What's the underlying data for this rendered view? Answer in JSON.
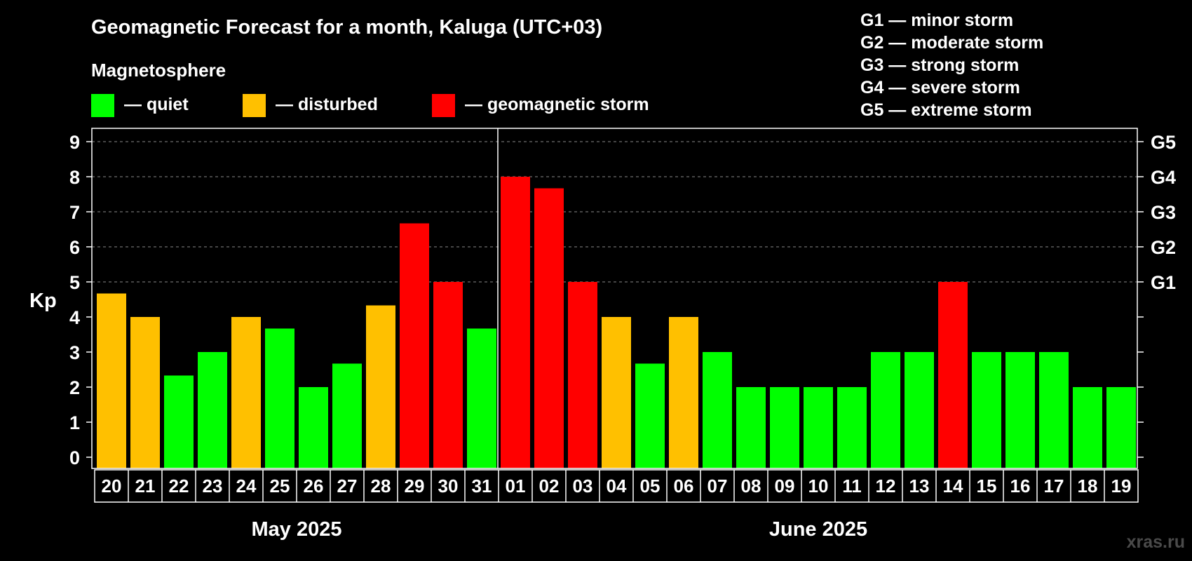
{
  "chart_data": {
    "type": "bar",
    "title": "Geomagnetic Forecast for a month, Kaluga (UTC+03)",
    "subtitle": "Magnetosphere",
    "ylabel": "Kp",
    "ylim": [
      0,
      9
    ],
    "yticks": [
      "0",
      "1",
      "2",
      "3",
      "4",
      "5",
      "6",
      "7",
      "8",
      "9"
    ],
    "right_ticks": [
      {
        "value": 5,
        "label": "G1"
      },
      {
        "value": 6,
        "label": "G2"
      },
      {
        "value": 7,
        "label": "G3"
      },
      {
        "value": 8,
        "label": "G4"
      },
      {
        "value": 9,
        "label": "G5"
      }
    ],
    "legend": [
      {
        "label": "— quiet",
        "color": "#00ff00"
      },
      {
        "label": "— disturbed",
        "color": "#ffc000"
      },
      {
        "label": "— geomagnetic storm",
        "color": "#ff0000"
      }
    ],
    "g_legend": [
      "G1 — minor storm",
      "G2 — moderate storm",
      "G3 — strong storm",
      "G4 — severe storm",
      "G5 — extreme storm"
    ],
    "months": [
      {
        "label": "May 2025",
        "start": 0,
        "count": 12
      },
      {
        "label": "June 2025",
        "start": 12,
        "count": 19
      }
    ],
    "categories": [
      "20",
      "21",
      "22",
      "23",
      "24",
      "25",
      "26",
      "27",
      "28",
      "29",
      "30",
      "31",
      "01",
      "02",
      "03",
      "04",
      "05",
      "06",
      "07",
      "08",
      "09",
      "10",
      "11",
      "12",
      "13",
      "14",
      "15",
      "16",
      "17",
      "18",
      "19"
    ],
    "values": [
      4.67,
      4,
      2.33,
      3,
      4,
      3.67,
      2,
      2.67,
      4.33,
      6.67,
      5,
      3.67,
      8,
      7.67,
      5,
      4,
      2.67,
      4,
      3,
      2,
      2,
      2,
      2,
      3,
      3,
      5,
      3,
      3,
      3,
      2,
      2
    ],
    "colors": [
      "#ffc000",
      "#ffc000",
      "#00ff00",
      "#00ff00",
      "#ffc000",
      "#00ff00",
      "#00ff00",
      "#00ff00",
      "#ffc000",
      "#ff0000",
      "#ff0000",
      "#00ff00",
      "#ff0000",
      "#ff0000",
      "#ff0000",
      "#ffc000",
      "#00ff00",
      "#ffc000",
      "#00ff00",
      "#00ff00",
      "#00ff00",
      "#00ff00",
      "#00ff00",
      "#00ff00",
      "#00ff00",
      "#ff0000",
      "#00ff00",
      "#00ff00",
      "#00ff00",
      "#00ff00",
      "#00ff00"
    ]
  },
  "watermark": "xras.ru"
}
